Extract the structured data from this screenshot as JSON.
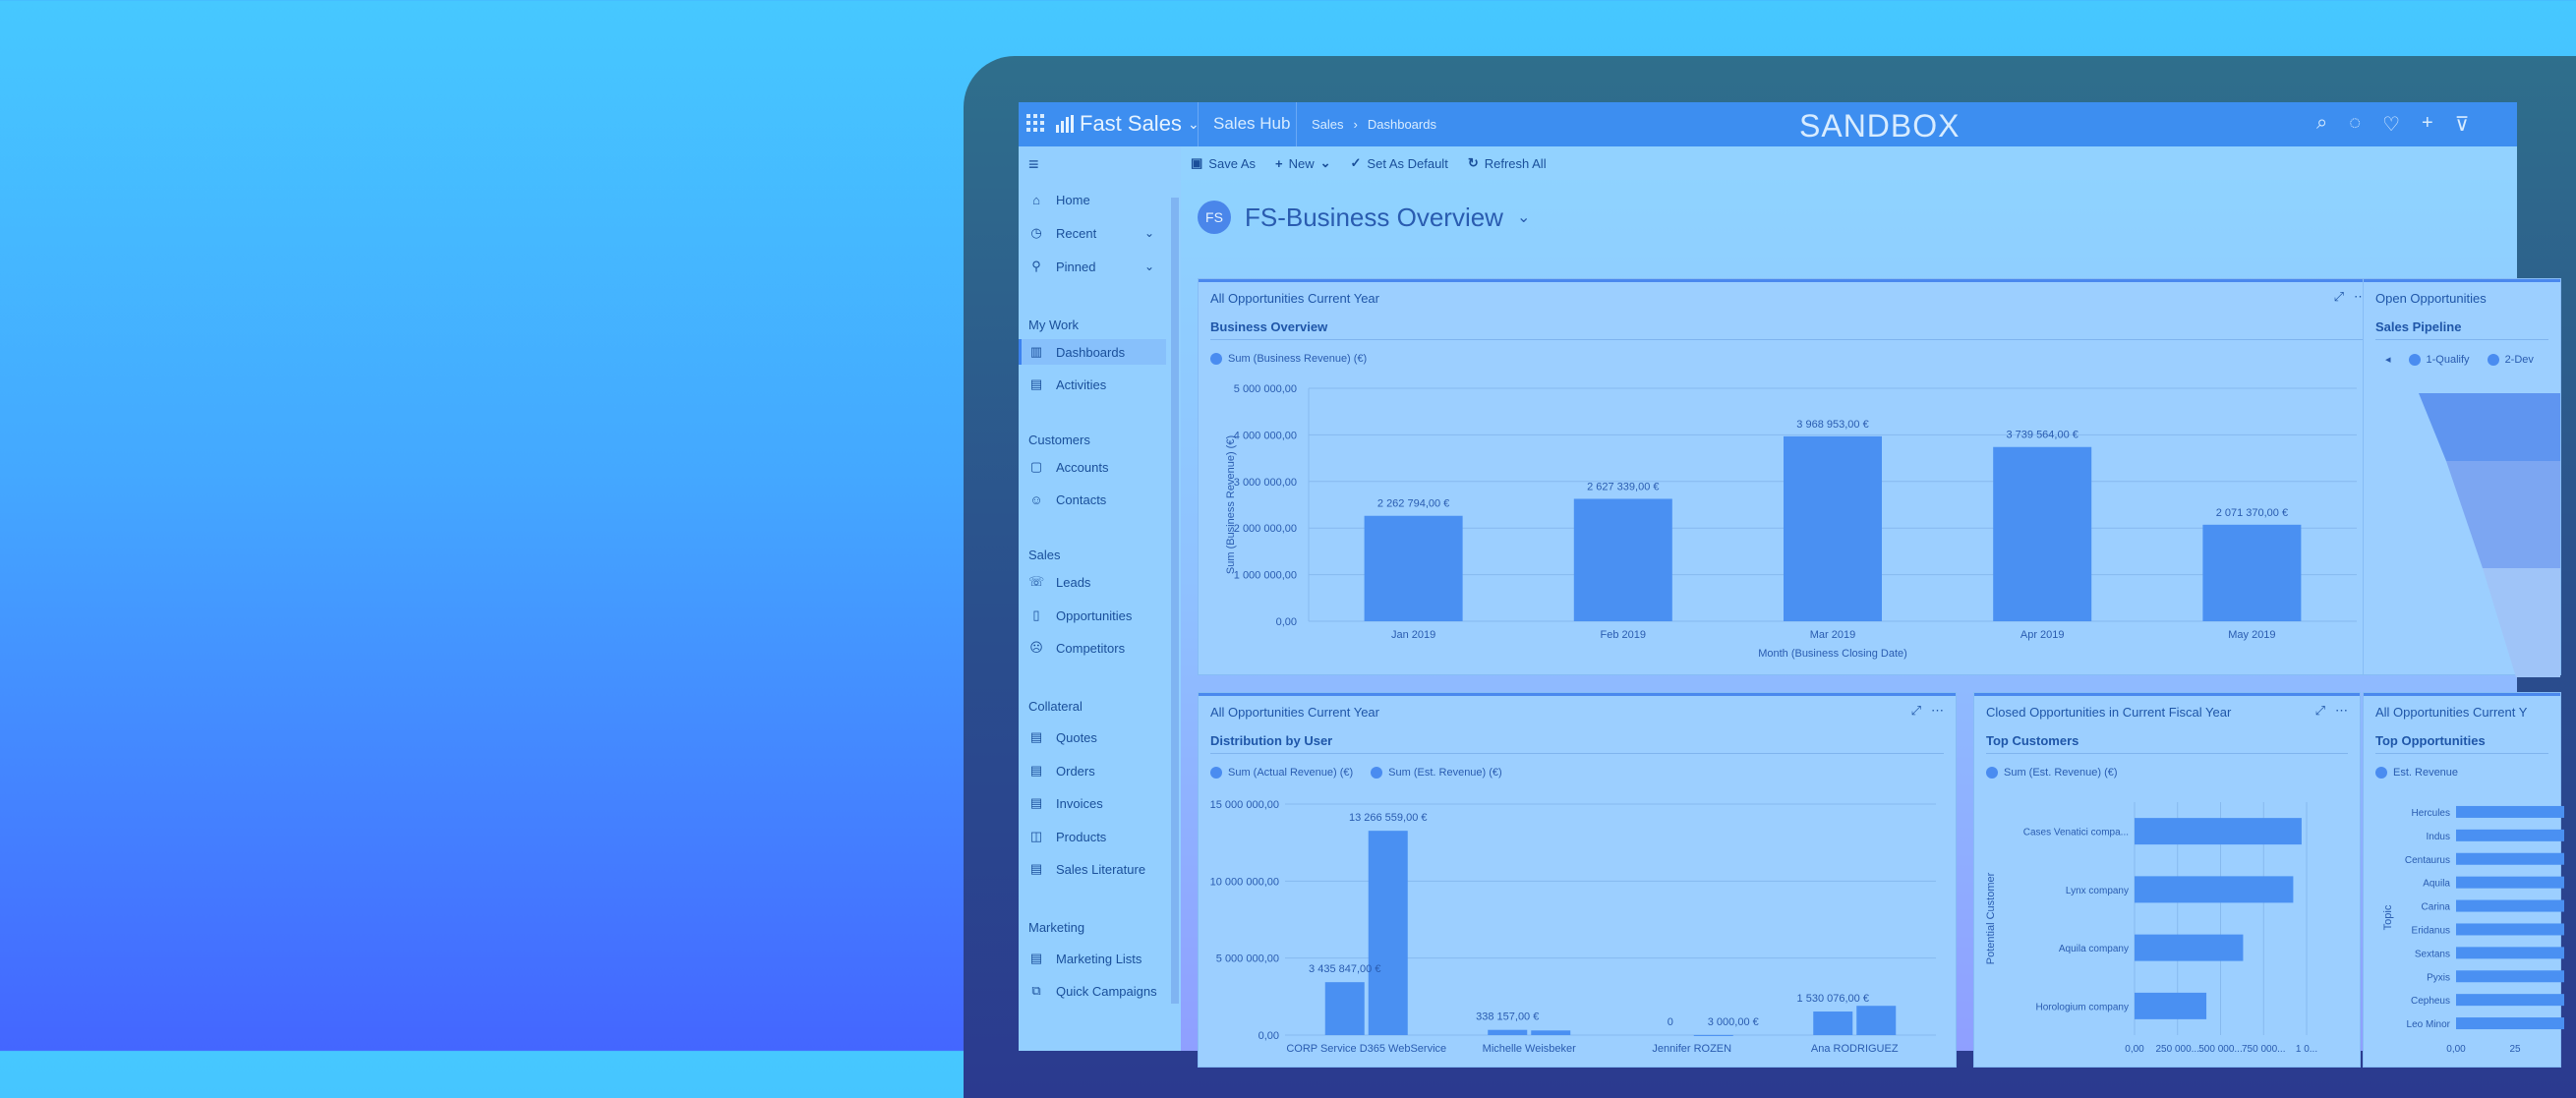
{
  "topbar": {
    "app_name": "Fast Sales",
    "hub": "Sales Hub",
    "breadcrumb": [
      "Sales",
      "Dashboards"
    ],
    "environment": "SANDBOX"
  },
  "sidebar": {
    "items_top": [
      {
        "label": "Home",
        "icon": "home-icon"
      },
      {
        "label": "Recent",
        "icon": "clock-icon"
      },
      {
        "label": "Pinned",
        "icon": "pin-icon"
      }
    ],
    "sections": [
      {
        "title": "My Work",
        "items": [
          "Dashboards",
          "Activities"
        ]
      },
      {
        "title": "Customers",
        "items": [
          "Accounts",
          "Contacts"
        ]
      },
      {
        "title": "Sales",
        "items": [
          "Leads",
          "Opportunities",
          "Competitors"
        ]
      },
      {
        "title": "Collateral",
        "items": [
          "Quotes",
          "Orders",
          "Invoices",
          "Products",
          "Sales Literature"
        ]
      },
      {
        "title": "Marketing",
        "items": [
          "Marketing Lists",
          "Quick Campaigns"
        ]
      }
    ],
    "active": "Dashboards"
  },
  "commandbar": {
    "save_as": "Save As",
    "new": "New",
    "set_default": "Set As Default",
    "refresh": "Refresh All"
  },
  "dashboard": {
    "title": "FS-Business Overview",
    "logo": "FS"
  },
  "panels": {
    "business": {
      "header": "All Opportunities Current Year",
      "subtitle": "Business Overview",
      "legend": "Sum (Business Revenue) (€)"
    },
    "pipeline": {
      "header": "Open Opportunities",
      "subtitle": "Sales Pipeline",
      "legend": [
        "1-Qualify",
        "2-Dev"
      ]
    },
    "distribution": {
      "header": "All Opportunities Current Year",
      "subtitle": "Distribution by User",
      "legend": [
        "Sum (Actual Revenue) (€)",
        "Sum (Est. Revenue) (€)"
      ]
    },
    "customers": {
      "header": "Closed Opportunities in Current Fiscal Year",
      "subtitle": "Top Customers",
      "legend": "Sum (Est. Revenue) (€)"
    },
    "topopps": {
      "header": "All Opportunities Current Y",
      "subtitle": "Top Opportunities",
      "legend": "Est. Revenue"
    }
  },
  "chart_data": [
    {
      "type": "bar",
      "categories": [
        "Jan 2019",
        "Feb 2019",
        "Mar 2019",
        "Apr 2019",
        "May 2019"
      ],
      "values": [
        2262794,
        2627339,
        3968953,
        3739564,
        2071370
      ],
      "value_labels": [
        "2 262 794,00 €",
        "2 627 339,00 €",
        "3 968 953,00 €",
        "3 739 564,00 €",
        "2 071 370,00 €"
      ],
      "ylim": [
        0,
        5000000
      ],
      "yticks": [
        "0,00",
        "1 000 000,00",
        "2 000 000,00",
        "3 000 000,00",
        "4 000 000,00",
        "5 000 000,00"
      ],
      "xlabel": "Month (Business Closing Date)",
      "ylabel": "Sum (Business Revenue) (€)"
    },
    {
      "type": "bar",
      "categories": [
        "CORP Service D365 WebService",
        "Michelle Weisbeker",
        "Jennifer ROZEN",
        "Ana RODRIGUEZ"
      ],
      "series": [
        {
          "name": "Sum (Actual Revenue) (€)",
          "values": [
            3435847,
            338157,
            0,
            1530076
          ]
        },
        {
          "name": "Sum (Est. Revenue) (€)",
          "values": [
            13266559,
            300000,
            3000,
            1900000
          ]
        }
      ],
      "value_labels": [
        "3 435 847,00 €",
        "13 266 559,00 €",
        "338 157,00 €",
        "0",
        "3 000,00 €",
        "1 530 076,00 €"
      ],
      "ylim": [
        0,
        15000000
      ],
      "yticks": [
        "0,00",
        "5 000 000,00",
        "10 000 000,00",
        "15 000 000,00"
      ]
    },
    {
      "type": "bar",
      "orientation": "horizontal",
      "categories": [
        "Cases Venatici compa...",
        "Lynx company",
        "Aquila company",
        "Horologium company"
      ],
      "values": [
        1000000,
        950000,
        650000,
        430000
      ],
      "xticks": [
        "0,00",
        "250 000...",
        "500 000...",
        "750 000...",
        "1 0..."
      ],
      "ylabel": "Potential Customer"
    },
    {
      "type": "bar",
      "orientation": "horizontal",
      "categories": [
        "Hercules",
        "Indus",
        "Centaurus",
        "Aquila",
        "Carina",
        "Eridanus",
        "Sextans",
        "Pyxis",
        "Cepheus",
        "Leo Minor"
      ],
      "xticks": [
        "0,00",
        "25"
      ],
      "ylabel": "Topic"
    }
  ]
}
